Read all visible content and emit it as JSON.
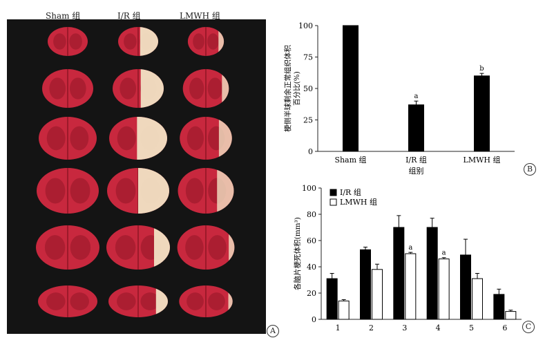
{
  "panel_a": {
    "label": "A",
    "columns": [
      "Sham 组",
      "I/R 组",
      "LMWH 组"
    ],
    "colors": {
      "background": "#141414",
      "tissue": "#c8283e",
      "tissue_dark": "#8e1424",
      "infarct": "#f1e2c4"
    },
    "rows": 6
  },
  "panel_b_label": "B",
  "panel_c_label": "C",
  "chart_data": [
    {
      "type": "bar",
      "panel": "B",
      "categories": [
        "Sham 组",
        "I/R 组",
        "LMWH 组"
      ],
      "values": [
        100,
        37,
        60
      ],
      "errors": [
        0,
        3,
        2
      ],
      "annotations": [
        "",
        "a",
        "b"
      ],
      "title": "",
      "xlabel": "组别",
      "ylabel": "梗侧半球剩余正常组织体积\n百分比(%)",
      "ylim": [
        0,
        100
      ],
      "yticks": [
        0,
        25,
        50,
        75,
        100
      ],
      "color": "#000000"
    },
    {
      "type": "bar",
      "panel": "C",
      "categories": [
        "1",
        "2",
        "3",
        "4",
        "5",
        "6"
      ],
      "series": [
        {
          "name": "I/R 组",
          "values": [
            31,
            53,
            70,
            70,
            49,
            19
          ],
          "errors": [
            4,
            2,
            9,
            7,
            12,
            4
          ],
          "annotations": [
            "",
            "",
            "",
            "",
            "",
            ""
          ],
          "color": "#000000"
        },
        {
          "name": "LMWH 组",
          "values": [
            14,
            38,
            50,
            46,
            31,
            6
          ],
          "errors": [
            1,
            4,
            1,
            1,
            4,
            1
          ],
          "annotations": [
            "",
            "",
            "a",
            "a",
            "",
            ""
          ],
          "color": "#ffffff"
        }
      ],
      "title": "",
      "xlabel": "",
      "ylabel": "各脑片梗死体积(mm³)",
      "ylim": [
        0,
        100
      ],
      "yticks": [
        0,
        20,
        40,
        60,
        80,
        100
      ],
      "legend": "top-left"
    }
  ]
}
